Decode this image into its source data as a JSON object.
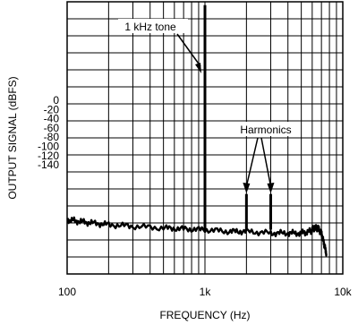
{
  "chart_data": {
    "type": "line",
    "x_scale": "log",
    "xlim": [
      100,
      10000
    ],
    "xlabel": "FREQUENCY (Hz)",
    "ylabel": "OUTPUT SIGNAL (dBFS)",
    "ylim": [
      -160,
      0
    ],
    "x_ticks": [
      "100",
      "1k",
      "10k"
    ],
    "y_ticks": [
      "0",
      "-20",
      "-40",
      "-60",
      "-80",
      "-100",
      "-120",
      "-140"
    ],
    "grid": true,
    "annotations": [
      {
        "text": "1 kHz tone",
        "x": 1000
      },
      {
        "text": "Harmonics",
        "x": [
          2000,
          3000
        ]
      }
    ],
    "series": [
      {
        "noise_floor": [
          [
            100,
            -128
          ],
          [
            120,
            -129
          ],
          [
            150,
            -130
          ],
          [
            200,
            -131
          ],
          [
            300,
            -132
          ],
          [
            500,
            -133
          ],
          [
            700,
            -133.5
          ],
          [
            1000,
            -134
          ],
          [
            1500,
            -135
          ],
          [
            2000,
            -135
          ],
          [
            3000,
            -136
          ],
          [
            4000,
            -136
          ],
          [
            5000,
            -136
          ],
          [
            5800,
            -135
          ],
          [
            6200,
            -133
          ],
          [
            6600,
            -133
          ],
          [
            7000,
            -136
          ],
          [
            7300,
            -142
          ],
          [
            7600,
            -148
          ]
        ],
        "peaks": [
          {
            "x": 1000,
            "y": -2
          },
          {
            "x": 2000,
            "y": -113
          },
          {
            "x": 3000,
            "y": -113
          }
        ]
      }
    ]
  }
}
